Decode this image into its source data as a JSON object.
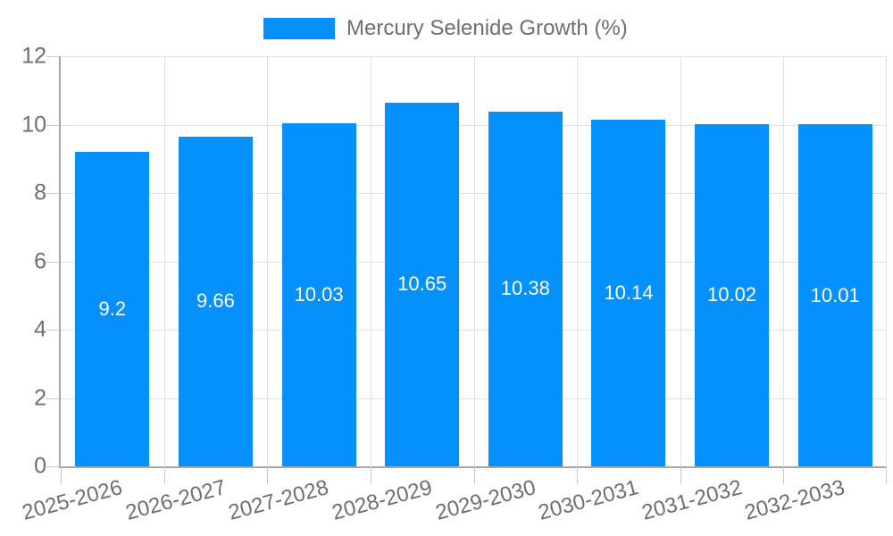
{
  "legend": {
    "label": "Mercury Selenide Growth (%)"
  },
  "chart_data": {
    "type": "bar",
    "title": "Mercury Selenide Growth (%)",
    "categories": [
      "2025-2026",
      "2026-2027",
      "2027-2028",
      "2028-2029",
      "2029-2030",
      "2030-2031",
      "2031-2032",
      "2032-2033"
    ],
    "series": [
      {
        "name": "Mercury Selenide Growth (%)",
        "values": [
          9.2,
          9.66,
          10.03,
          10.65,
          10.38,
          10.14,
          10.02,
          10.01
        ]
      }
    ],
    "values": [
      9.2,
      9.66,
      10.03,
      10.65,
      10.38,
      10.14,
      10.02,
      10.01
    ],
    "value_labels": [
      "9.2",
      "9.66",
      "10.03",
      "10.65",
      "10.38",
      "10.14",
      "10.02",
      "10.01"
    ],
    "xlabel": "",
    "ylabel": "",
    "ylim": [
      0,
      12
    ],
    "y_ticks": [
      0,
      2,
      4,
      6,
      8,
      10,
      12
    ],
    "grid": true,
    "legend_position": "top-center",
    "x_tick_rotation_deg": -15,
    "colors": {
      "bar": "#0591fb",
      "value_label": "#ffffff",
      "axis_text": "#6e6e6e",
      "legend_text": "#6f6f6f",
      "grid_line": "#e0e0e0",
      "axis_line": "#a6a6a6",
      "tick_mark": "#c9c9c9",
      "background": "#ffffff"
    }
  }
}
